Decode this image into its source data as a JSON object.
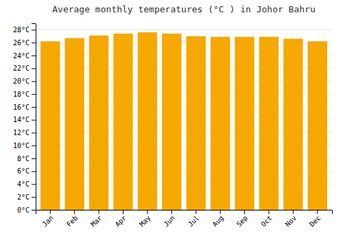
{
  "chart_data": {
    "type": "bar",
    "title": "Average monthly temperatures (°C ) in Johor Bahru",
    "categories": [
      "Jan",
      "Feb",
      "Mar",
      "Apr",
      "May",
      "Jun",
      "Jul",
      "Aug",
      "Sep",
      "Oct",
      "Nov",
      "Dec"
    ],
    "values": [
      26.2,
      26.7,
      27.1,
      27.4,
      27.6,
      27.4,
      27.0,
      26.9,
      26.9,
      26.9,
      26.6,
      26.2
    ],
    "color": "#F5A800",
    "ylim": [
      0,
      29
    ],
    "yticks": [
      {
        "value": 0,
        "label": "0°C"
      },
      {
        "value": 2,
        "label": "2°C"
      },
      {
        "value": 4,
        "label": "4°C"
      },
      {
        "value": 6,
        "label": "6°C"
      },
      {
        "value": 8,
        "label": "8°C"
      },
      {
        "value": 10,
        "label": "10°C"
      },
      {
        "value": 12,
        "label": "12°C"
      },
      {
        "value": 14,
        "label": "14°C"
      },
      {
        "value": 16,
        "label": "16°C"
      },
      {
        "value": 18,
        "label": "18°C"
      },
      {
        "value": 20,
        "label": "20°C"
      },
      {
        "value": 22,
        "label": "22°C"
      },
      {
        "value": 24,
        "label": "24°C"
      },
      {
        "value": 26,
        "label": "26°C"
      },
      {
        "value": 28,
        "label": "28°C"
      }
    ],
    "grid": true
  }
}
